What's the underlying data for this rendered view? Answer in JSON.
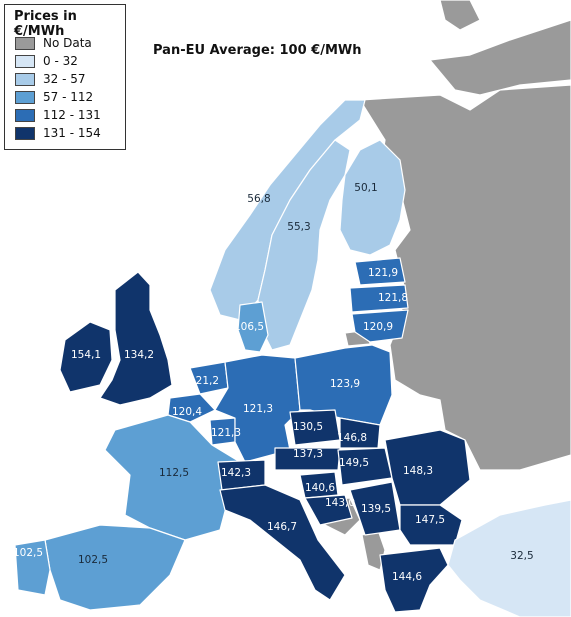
{
  "legend": {
    "title": "Prices in €/MWh",
    "items": [
      {
        "label": "No Data",
        "color": "#9a9a9a"
      },
      {
        "label": "0 - 32",
        "color": "#d6e6f5"
      },
      {
        "label": "32 - 57",
        "color": "#a8cbe8"
      },
      {
        "label": "57 - 112",
        "color": "#5d9fd3"
      },
      {
        "label": "112 - 131",
        "color": "#2c6db5"
      },
      {
        "label": "131 - 154",
        "color": "#10346b"
      }
    ]
  },
  "average": "Pan-EU Average: 100 €/MWh",
  "prices": {
    "norway_north": "56,8",
    "sweden": "55,3",
    "finland": "50,1",
    "estonia": "121,9",
    "latvia": "121,8",
    "lithuania": "120,9",
    "denmark": "106,5",
    "ireland": "154,1",
    "uk": "134,2",
    "netherlands": "121,2",
    "belgium": "120,4",
    "germany": "121,3",
    "luxembourg": "121,3",
    "poland": "123,9",
    "czechia": "130,5",
    "slovakia": "146,8",
    "austria": "137,3",
    "hungary": "149,5",
    "romania": "148,3",
    "switzerland": "142,3",
    "france": "112,5",
    "spain": "102,5",
    "portugal": "102,5",
    "slovenia": "140,6",
    "croatia": "143,0",
    "serbia": "139,5",
    "bulgaria": "147,5",
    "italy": "146,7",
    "greece": "144,6",
    "turkey": "32,5"
  }
}
